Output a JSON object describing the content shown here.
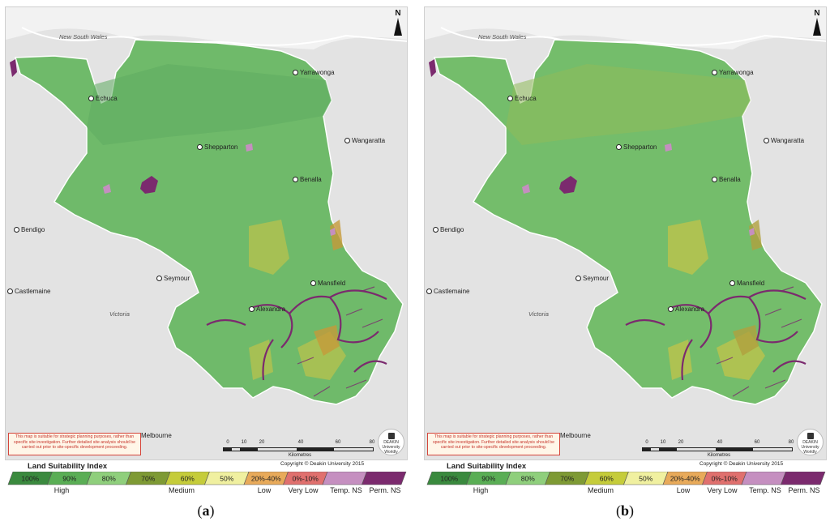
{
  "panels": [
    {
      "id": "a",
      "label_open": "(",
      "label_letter": "a",
      "label_close": ")",
      "fill_main": "#6fba6a",
      "fill_alt": "#5fac60",
      "fill_medium": "#b8c24e",
      "fill_low": "#c69a3a"
    },
    {
      "id": "b",
      "label_open": "(",
      "label_letter": "b",
      "label_close": ")",
      "fill_main": "#74bd6b",
      "fill_alt": "#8fbc5a",
      "fill_medium": "#c2c44a",
      "fill_low": "#b0a03e"
    }
  ],
  "places": {
    "new_south_wales": "New South Wales",
    "yarrawonga": "Yarrawonga",
    "echuca": "Echuca",
    "wangaratta": "Wangaratta",
    "shepparton": "Shepparton",
    "benalla": "Benalla",
    "bendigo": "Bendigo",
    "seymour": "Seymour",
    "mansfield": "Mansfield",
    "castlemaine": "Castlemaine",
    "alexandra": "Alexandra",
    "victoria": "Victoria",
    "melbourne": "Melbourne"
  },
  "north_label": "N",
  "disclaimer": "This map is suitable for strategic planning purposes, rather than specific site investigation. Further detailed site analysis should be carried out prior to site-specific development proceeding.",
  "scalebar": {
    "ticks": [
      "0",
      "10",
      "20",
      "40",
      "60",
      "80"
    ],
    "unit": "Kilometres"
  },
  "logo": {
    "line1": "DEAKIN",
    "line2": "University",
    "line3": "Worldly"
  },
  "copyright": "Copyright © Deakin University 2015",
  "legend": {
    "title": "Land Suitability Index",
    "classes": [
      {
        "label": "100%",
        "color": "#3a8a3e"
      },
      {
        "label": "90%",
        "color": "#5aae55"
      },
      {
        "label": "80%",
        "color": "#8fcf7c"
      },
      {
        "label": "70%",
        "color": "#7e9a34"
      },
      {
        "label": "60%",
        "color": "#c5cc3a"
      },
      {
        "label": "50%",
        "color": "#f0f0a0"
      },
      {
        "label": "20%-40%",
        "color": "#e8aa5a"
      },
      {
        "label": "0%-10%",
        "color": "#e0706e"
      },
      {
        "label": "",
        "color": "#c58fc0"
      },
      {
        "label": "",
        "color": "#7b2a6e"
      }
    ],
    "groups": [
      {
        "label": "High"
      },
      {
        "label": "Medium"
      },
      {
        "label": "Low"
      },
      {
        "label": "Very Low"
      },
      {
        "label": "Temp. NS"
      },
      {
        "label": "Perm. NS"
      }
    ]
  }
}
